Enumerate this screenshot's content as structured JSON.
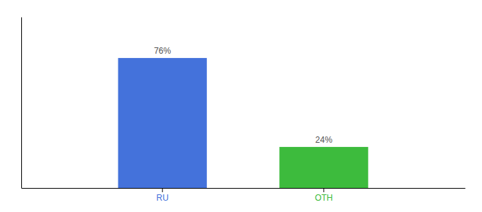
{
  "chart_data": {
    "type": "bar",
    "categories": [
      "RU",
      "OTH"
    ],
    "values": [
      76,
      24
    ],
    "value_labels": [
      "76%",
      "24%"
    ],
    "colors": [
      "#4472db",
      "#3dbb3d"
    ],
    "ylim": [
      0,
      100
    ],
    "yticks": [],
    "data_labels": true,
    "tick_labels": "x"
  }
}
